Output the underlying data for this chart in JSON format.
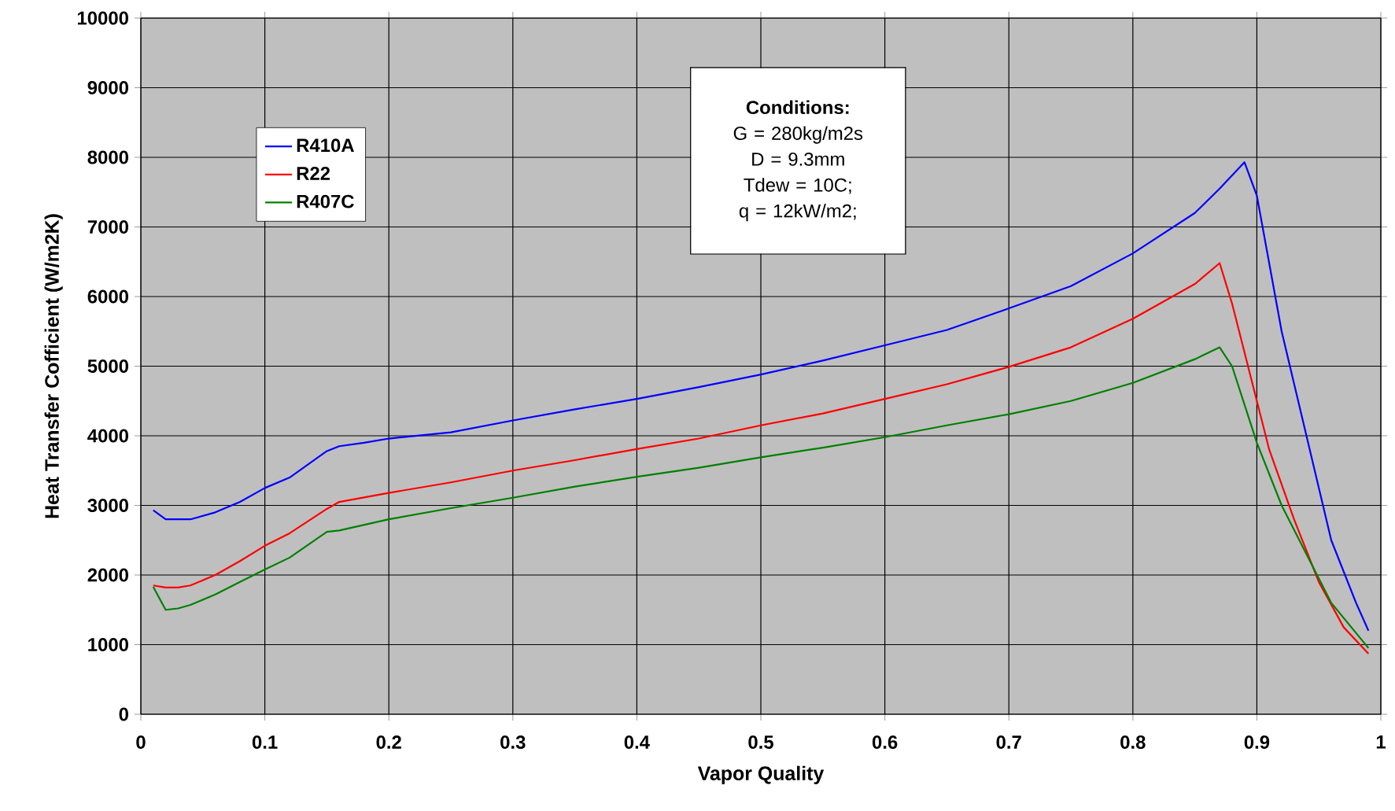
{
  "chart_data": {
    "type": "line",
    "xlabel": "Vapor Quality",
    "ylabel": "Heat Transfer Cofficient (W/m2K)",
    "xlim": [
      0,
      1
    ],
    "ylim": [
      0,
      10000
    ],
    "xticks": [
      0,
      0.1,
      0.2,
      0.3,
      0.4,
      0.5,
      0.6,
      0.7,
      0.8,
      0.9,
      1
    ],
    "yticks": [
      0,
      1000,
      2000,
      3000,
      4000,
      5000,
      6000,
      7000,
      8000,
      9000,
      10000
    ],
    "grid": true,
    "legend": "top left",
    "marker": "none",
    "line_style": "solid",
    "annotations": [
      "Conditions:",
      "G = 280kg/m2s",
      "D = 9.3mm",
      "Tdew = 10C;",
      "q  = 12kW/m2;"
    ],
    "series": [
      {
        "name": "R410A",
        "color": "#0000ff",
        "x": [
          0.01,
          0.02,
          0.04,
          0.06,
          0.08,
          0.1,
          0.12,
          0.15,
          0.16,
          0.18,
          0.2,
          0.25,
          0.3,
          0.35,
          0.4,
          0.45,
          0.5,
          0.55,
          0.6,
          0.65,
          0.7,
          0.75,
          0.8,
          0.85,
          0.87,
          0.89,
          0.9,
          0.92,
          0.94,
          0.96,
          0.98,
          0.99
        ],
        "values": [
          2930,
          2800,
          2800,
          2900,
          3050,
          3250,
          3400,
          3780,
          3850,
          3900,
          3960,
          4050,
          4220,
          4380,
          4530,
          4700,
          4880,
          5080,
          5300,
          5520,
          5830,
          6150,
          6620,
          7200,
          7550,
          7930,
          7450,
          5500,
          4000,
          2500,
          1600,
          1200
        ]
      },
      {
        "name": "R22",
        "color": "#ff0000",
        "x": [
          0.01,
          0.02,
          0.03,
          0.04,
          0.06,
          0.08,
          0.1,
          0.12,
          0.15,
          0.16,
          0.2,
          0.25,
          0.3,
          0.35,
          0.4,
          0.45,
          0.5,
          0.55,
          0.6,
          0.65,
          0.7,
          0.75,
          0.8,
          0.85,
          0.87,
          0.88,
          0.9,
          0.91,
          0.93,
          0.95,
          0.97,
          0.99
        ],
        "values": [
          1850,
          1820,
          1820,
          1850,
          2000,
          2200,
          2420,
          2600,
          2950,
          3050,
          3180,
          3330,
          3500,
          3650,
          3810,
          3960,
          4150,
          4320,
          4530,
          4740,
          4990,
          5270,
          5680,
          6180,
          6480,
          5900,
          4500,
          3800,
          2800,
          1900,
          1250,
          870
        ]
      },
      {
        "name": "R407C",
        "color": "#008000",
        "x": [
          0.01,
          0.02,
          0.03,
          0.04,
          0.06,
          0.08,
          0.1,
          0.12,
          0.15,
          0.16,
          0.2,
          0.25,
          0.3,
          0.35,
          0.4,
          0.45,
          0.5,
          0.55,
          0.6,
          0.65,
          0.7,
          0.75,
          0.8,
          0.85,
          0.87,
          0.88,
          0.9,
          0.92,
          0.94,
          0.96,
          0.99
        ],
        "values": [
          1830,
          1500,
          1520,
          1570,
          1720,
          1900,
          2080,
          2250,
          2620,
          2640,
          2800,
          2960,
          3110,
          3270,
          3410,
          3540,
          3690,
          3830,
          3980,
          4150,
          4310,
          4500,
          4760,
          5100,
          5270,
          5000,
          3900,
          3000,
          2300,
          1600,
          950
        ]
      }
    ]
  }
}
